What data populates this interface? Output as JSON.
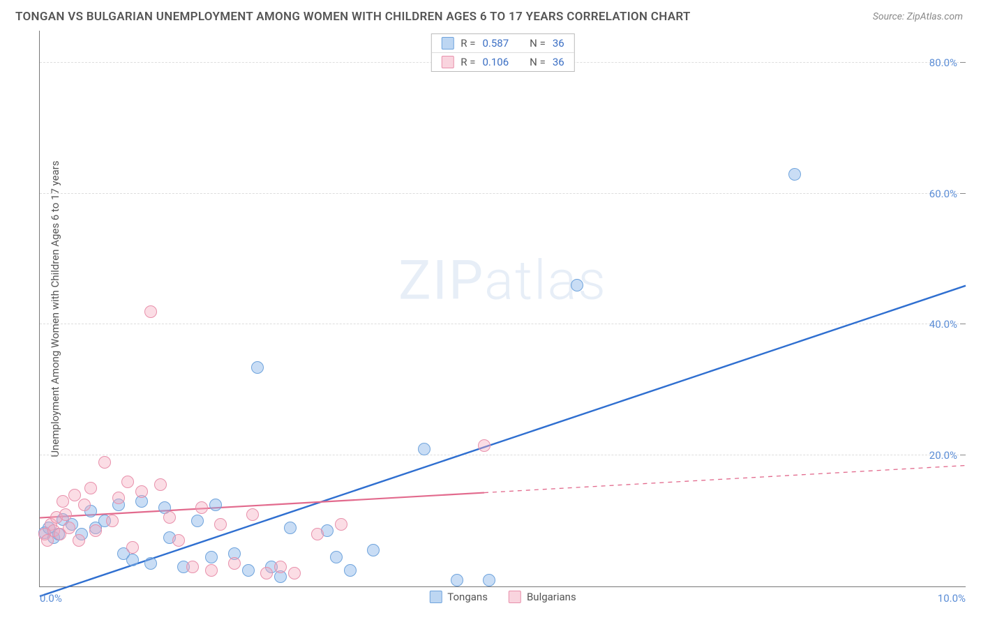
{
  "title": "TONGAN VS BULGARIAN UNEMPLOYMENT AMONG WOMEN WITH CHILDREN AGES 6 TO 17 YEARS CORRELATION CHART",
  "source": "Source: ZipAtlas.com",
  "watermark": "ZIPatlas",
  "y_axis_label": "Unemployment Among Women with Children Ages 6 to 17 years",
  "chart": {
    "type": "scatter",
    "xlim": [
      0,
      10
    ],
    "ylim": [
      0,
      85
    ],
    "x_ticks": [
      "0.0%",
      "10.0%"
    ],
    "y_ticks": [
      {
        "v": 20,
        "label": "20.0%"
      },
      {
        "v": 40,
        "label": "40.0%"
      },
      {
        "v": 60,
        "label": "60.0%"
      },
      {
        "v": 80,
        "label": "80.0%"
      }
    ],
    "background_color": "#ffffff",
    "grid_color": "#dddddd",
    "marker_radius": 9,
    "series": [
      {
        "name": "Tongans",
        "color_fill": "rgba(135,180,232,0.45)",
        "color_stroke": "#6ea3dc",
        "R": "0.587",
        "N": "36",
        "trend": {
          "x1": 0,
          "y1": -1.5,
          "x2": 10,
          "y2": 46,
          "color": "#2f6fd0",
          "width": 2.4,
          "solid_end_x": 10
        },
        "points": [
          [
            0.05,
            8.2
          ],
          [
            0.1,
            9.0
          ],
          [
            0.15,
            7.5
          ],
          [
            0.2,
            8.0
          ],
          [
            0.25,
            10.2
          ],
          [
            0.35,
            9.5
          ],
          [
            0.45,
            8.0
          ],
          [
            0.55,
            11.5
          ],
          [
            0.6,
            9.0
          ],
          [
            0.7,
            10.0
          ],
          [
            0.85,
            12.5
          ],
          [
            0.9,
            5.0
          ],
          [
            1.0,
            4.0
          ],
          [
            1.1,
            13.0
          ],
          [
            1.2,
            3.5
          ],
          [
            1.35,
            12.0
          ],
          [
            1.4,
            7.5
          ],
          [
            1.55,
            3.0
          ],
          [
            1.7,
            10.0
          ],
          [
            1.85,
            4.5
          ],
          [
            1.9,
            12.5
          ],
          [
            2.1,
            5.0
          ],
          [
            2.25,
            2.5
          ],
          [
            2.35,
            33.5
          ],
          [
            2.5,
            3.0
          ],
          [
            2.6,
            1.5
          ],
          [
            2.7,
            9.0
          ],
          [
            3.1,
            8.5
          ],
          [
            3.2,
            4.5
          ],
          [
            3.35,
            2.5
          ],
          [
            3.6,
            5.5
          ],
          [
            4.15,
            21.0
          ],
          [
            4.5,
            1.0
          ],
          [
            4.85,
            1.0
          ],
          [
            5.8,
            46.0
          ],
          [
            8.15,
            63.0
          ]
        ]
      },
      {
        "name": "Bulgarians",
        "color_fill": "rgba(244,170,190,0.4)",
        "color_stroke": "#e890ab",
        "R": "0.106",
        "N": "36",
        "trend": {
          "x1": 0,
          "y1": 10.5,
          "x2": 10,
          "y2": 18.5,
          "color": "#e26a8d",
          "width": 2.2,
          "solid_end_x": 4.8
        },
        "points": [
          [
            0.05,
            8.0
          ],
          [
            0.08,
            7.0
          ],
          [
            0.12,
            9.5
          ],
          [
            0.15,
            8.5
          ],
          [
            0.18,
            10.5
          ],
          [
            0.22,
            8.0
          ],
          [
            0.25,
            13.0
          ],
          [
            0.28,
            11.0
          ],
          [
            0.32,
            9.0
          ],
          [
            0.38,
            14.0
          ],
          [
            0.42,
            7.0
          ],
          [
            0.48,
            12.5
          ],
          [
            0.55,
            15.0
          ],
          [
            0.6,
            8.5
          ],
          [
            0.7,
            19.0
          ],
          [
            0.78,
            10.0
          ],
          [
            0.85,
            13.5
          ],
          [
            0.95,
            16.0
          ],
          [
            1.0,
            6.0
          ],
          [
            1.1,
            14.5
          ],
          [
            1.2,
            42.0
          ],
          [
            1.3,
            15.5
          ],
          [
            1.4,
            10.5
          ],
          [
            1.5,
            7.0
          ],
          [
            1.65,
            3.0
          ],
          [
            1.75,
            12.0
          ],
          [
            1.85,
            2.5
          ],
          [
            1.95,
            9.5
          ],
          [
            2.1,
            3.5
          ],
          [
            2.3,
            11.0
          ],
          [
            2.45,
            2.0
          ],
          [
            2.6,
            3.0
          ],
          [
            2.75,
            2.0
          ],
          [
            3.0,
            8.0
          ],
          [
            3.25,
            9.5
          ],
          [
            4.8,
            21.5
          ]
        ]
      }
    ]
  },
  "legend_labels": {
    "r_prefix": "R =",
    "n_prefix": "N ="
  }
}
